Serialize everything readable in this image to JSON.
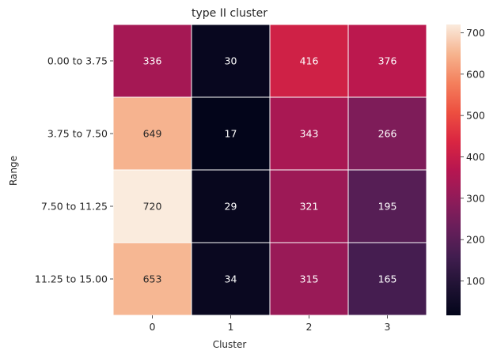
{
  "chart_data": {
    "type": "heatmap",
    "title": "type II cluster",
    "xlabel": "Cluster",
    "ylabel": "Range",
    "x_categories": [
      "0",
      "1",
      "2",
      "3"
    ],
    "y_categories": [
      "0.00 to 3.75",
      "3.75 to 7.50",
      "7.50 to 11.25",
      "11.25 to 15.00"
    ],
    "values": [
      [
        336,
        30,
        416,
        376
      ],
      [
        649,
        17,
        343,
        266
      ],
      [
        720,
        29,
        321,
        195
      ],
      [
        653,
        34,
        315,
        165
      ]
    ],
    "colormap": "rocket",
    "color_range": [
      17,
      720
    ],
    "colorbar_ticks": [
      100,
      200,
      300,
      400,
      500,
      600,
      700
    ],
    "annotations": true,
    "grid": false
  }
}
